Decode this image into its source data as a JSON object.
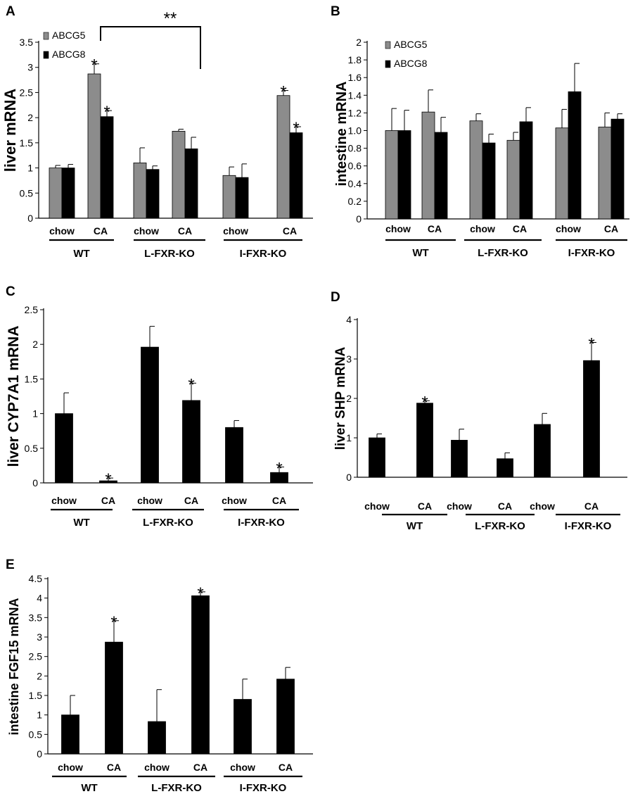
{
  "chart_data": [
    {
      "panel": "A",
      "type": "bar",
      "ylabel": "liver mRNA",
      "ylim": [
        0,
        3.5
      ],
      "yticks": [
        "0",
        "0.5",
        "1",
        "1.5",
        "2",
        "2.5",
        "3",
        "3.5"
      ],
      "condition_labels": [
        "chow",
        "CA",
        "chow",
        "CA",
        "chow",
        "CA"
      ],
      "genotypes": [
        "WT",
        "L-FXR-KO",
        "I-FXR-KO"
      ],
      "legend": [
        "ABCG5",
        "ABCG8"
      ],
      "series": [
        {
          "name": "ABCG5",
          "color": "#8c8c8c",
          "values": [
            1.0,
            2.87,
            1.1,
            1.73,
            0.85,
            2.44
          ],
          "errors": [
            0.05,
            0.2,
            0.3,
            0.04,
            0.17,
            0.1
          ],
          "stars": [
            false,
            true,
            false,
            false,
            false,
            true
          ]
        },
        {
          "name": "ABCG8",
          "color": "#000000",
          "values": [
            1.0,
            2.02,
            0.97,
            1.38,
            0.81,
            1.7
          ],
          "errors": [
            0.07,
            0.12,
            0.07,
            0.23,
            0.27,
            0.12
          ],
          "stars": [
            false,
            true,
            false,
            false,
            false,
            true
          ]
        }
      ],
      "bracket_label": "**"
    },
    {
      "panel": "B",
      "type": "bar",
      "ylabel": "intestine mRNA",
      "ylim": [
        0,
        2
      ],
      "yticks": [
        "0",
        "0.2",
        "0.4",
        "0.6",
        "0.8",
        "1.0",
        "1.2",
        "1.4",
        "1.6",
        "1.8",
        "2"
      ],
      "condition_labels": [
        "chow",
        "CA",
        "chow",
        "CA",
        "chow",
        "CA"
      ],
      "genotypes": [
        "WT",
        "L-FXR-KO",
        "I-FXR-KO"
      ],
      "legend": [
        "ABCG5",
        "ABCG8"
      ],
      "series": [
        {
          "name": "ABCG5",
          "color": "#8c8c8c",
          "values": [
            1.0,
            1.21,
            1.11,
            0.89,
            1.03,
            1.04
          ],
          "errors": [
            0.25,
            0.25,
            0.08,
            0.09,
            0.21,
            0.16
          ],
          "stars": [
            false,
            false,
            false,
            false,
            false,
            false
          ]
        },
        {
          "name": "ABCG8",
          "color": "#000000",
          "values": [
            1.0,
            0.98,
            0.86,
            1.1,
            1.44,
            1.13
          ],
          "errors": [
            0.23,
            0.17,
            0.1,
            0.16,
            0.32,
            0.06
          ],
          "stars": [
            false,
            false,
            false,
            false,
            false,
            false
          ]
        }
      ]
    },
    {
      "panel": "C",
      "type": "bar",
      "ylabel": "liver CYP7A1 mRNA",
      "ylim": [
        0,
        2.5
      ],
      "yticks": [
        "0",
        "0.5",
        "1",
        "1.5",
        "2",
        "2.5"
      ],
      "condition_labels": [
        "chow",
        "CA",
        "chow",
        "CA",
        "chow",
        "CA"
      ],
      "genotypes": [
        "WT",
        "L-FXR-KO",
        "I-FXR-KO"
      ],
      "series": [
        {
          "color": "#000000",
          "values": [
            1.0,
            0.03,
            1.96,
            1.19,
            0.8,
            0.15
          ],
          "errors": [
            0.3,
            0.04,
            0.3,
            0.25,
            0.1,
            0.08
          ],
          "stars": [
            false,
            true,
            false,
            true,
            false,
            true
          ]
        }
      ]
    },
    {
      "panel": "D",
      "type": "bar",
      "ylabel": "liver SHP mRNA",
      "ylim": [
        0,
        4
      ],
      "yticks": [
        "0",
        "1",
        "2",
        "3",
        "4"
      ],
      "condition_labels": [
        "chow",
        "CA",
        "chow",
        "CA",
        "chow",
        "CA"
      ],
      "genotypes": [
        "WT",
        "L-FXR-KO",
        "I-FXR-KO"
      ],
      "series": [
        {
          "color": "#000000",
          "values": [
            1.0,
            1.88,
            0.94,
            0.47,
            1.34,
            2.96
          ],
          "errors": [
            0.1,
            0.06,
            0.28,
            0.15,
            0.28,
            0.46
          ],
          "stars": [
            false,
            true,
            false,
            false,
            false,
            true
          ]
        }
      ]
    },
    {
      "panel": "E",
      "type": "bar",
      "ylabel": "intestine FGF15 mRNA",
      "ylim": [
        0,
        4.5
      ],
      "yticks": [
        "0",
        "0.5",
        "1",
        "1.5",
        "2",
        "2.5",
        "3",
        "3.5",
        "4",
        "4.5"
      ],
      "condition_labels": [
        "chow",
        "CA",
        "chow",
        "CA",
        "chow",
        "CA"
      ],
      "genotypes": [
        "WT",
        "L-FXR-KO",
        "I-FXR-KO"
      ],
      "series": [
        {
          "color": "#000000",
          "values": [
            1.0,
            2.87,
            0.83,
            4.06,
            1.4,
            1.92
          ],
          "errors": [
            0.5,
            0.55,
            0.82,
            0.1,
            0.52,
            0.3
          ],
          "stars": [
            false,
            true,
            false,
            true,
            false,
            false
          ]
        }
      ]
    }
  ]
}
